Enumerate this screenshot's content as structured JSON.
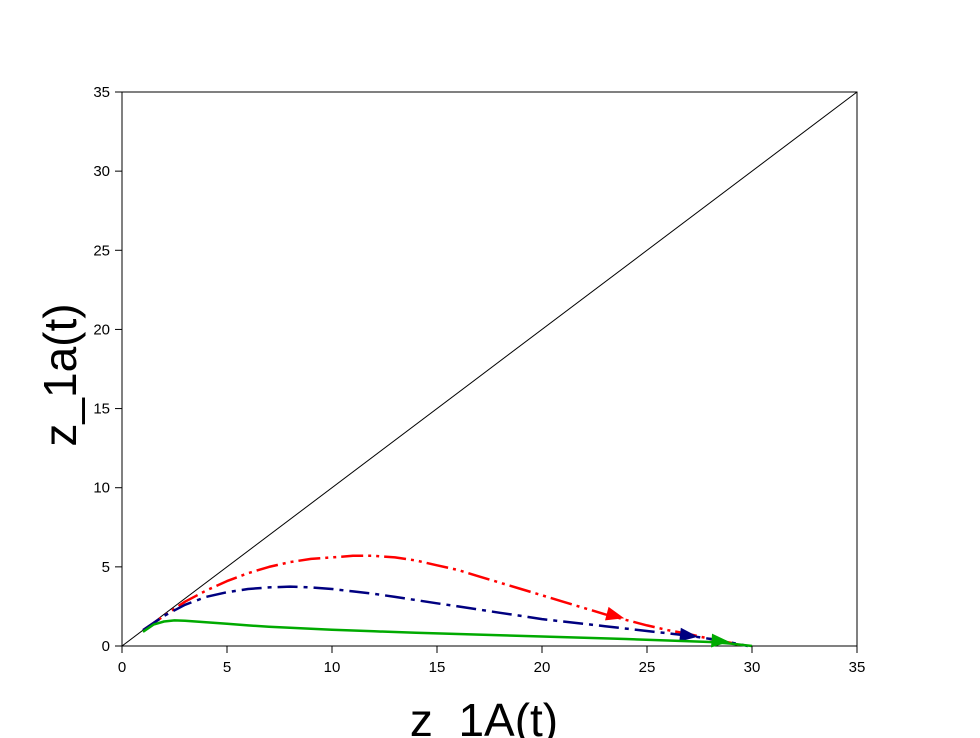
{
  "chart_data": {
    "type": "line",
    "title": "",
    "xlabel": "z_1A(t)",
    "ylabel": "z_1a(t)",
    "xlim": [
      0,
      35
    ],
    "ylim": [
      0,
      35
    ],
    "xticks": [
      "0",
      "5",
      "10",
      "15",
      "20",
      "25",
      "30",
      "35"
    ],
    "yticks": [
      "0",
      "5",
      "10",
      "15",
      "20",
      "25",
      "30",
      "35"
    ],
    "grid": false,
    "legend": "none",
    "series": [
      {
        "color": "#000000",
        "style": "solid",
        "arrow_at": null,
        "x": [
          0,
          35
        ],
        "y": [
          0,
          35
        ]
      },
      {
        "color": "#ff0000",
        "style": "dash-dot-dot",
        "arrow_at": [
          23.5,
          1.9
        ],
        "x": [
          1.0,
          2.0,
          3.0,
          4.0,
          5.0,
          6.0,
          7.0,
          8.0,
          9.0,
          10.0,
          11.0,
          12.0,
          13.0,
          14.0,
          15.0,
          16.0,
          17.0,
          18.0,
          19.0,
          20.0,
          21.0,
          22.0,
          23.0,
          24.0,
          25.0,
          26.0,
          27.0,
          28.0,
          29.0,
          29.6
        ],
        "y": [
          1.0,
          1.9,
          2.8,
          3.5,
          4.1,
          4.6,
          5.0,
          5.3,
          5.5,
          5.6,
          5.7,
          5.7,
          5.6,
          5.4,
          5.1,
          4.8,
          4.4,
          4.0,
          3.6,
          3.2,
          2.8,
          2.4,
          2.0,
          1.65,
          1.3,
          1.0,
          0.75,
          0.45,
          0.2,
          0.0
        ]
      },
      {
        "color": "#000080",
        "style": "dash-dot",
        "arrow_at": [
          27.0,
          0.65
        ],
        "x": [
          1.0,
          2.0,
          3.0,
          4.0,
          5.0,
          6.0,
          7.0,
          8.0,
          9.0,
          10.0,
          11.0,
          12.0,
          13.0,
          14.0,
          15.0,
          16.0,
          17.0,
          18.0,
          19.0,
          20.0,
          21.0,
          22.0,
          23.0,
          24.0,
          25.0,
          26.0,
          27.0,
          28.0,
          29.0,
          29.8
        ],
        "y": [
          1.0,
          1.9,
          2.6,
          3.1,
          3.4,
          3.6,
          3.7,
          3.75,
          3.7,
          3.6,
          3.45,
          3.3,
          3.1,
          2.9,
          2.7,
          2.5,
          2.3,
          2.1,
          1.9,
          1.7,
          1.55,
          1.4,
          1.25,
          1.1,
          0.95,
          0.8,
          0.65,
          0.45,
          0.22,
          0.0
        ]
      },
      {
        "color": "#00aa00",
        "style": "solid",
        "arrow_at": [
          28.5,
          0.3
        ],
        "x": [
          1.0,
          1.5,
          2.0,
          2.5,
          3.0,
          4.0,
          5.0,
          6.0,
          7.0,
          8.0,
          10.0,
          12.0,
          14.0,
          16.0,
          18.0,
          20.0,
          22.0,
          24.0,
          26.0,
          28.0,
          29.0,
          30.0
        ],
        "y": [
          0.9,
          1.35,
          1.55,
          1.62,
          1.6,
          1.5,
          1.4,
          1.3,
          1.22,
          1.15,
          1.03,
          0.93,
          0.84,
          0.76,
          0.68,
          0.6,
          0.52,
          0.44,
          0.35,
          0.25,
          0.15,
          0.0
        ]
      }
    ]
  }
}
